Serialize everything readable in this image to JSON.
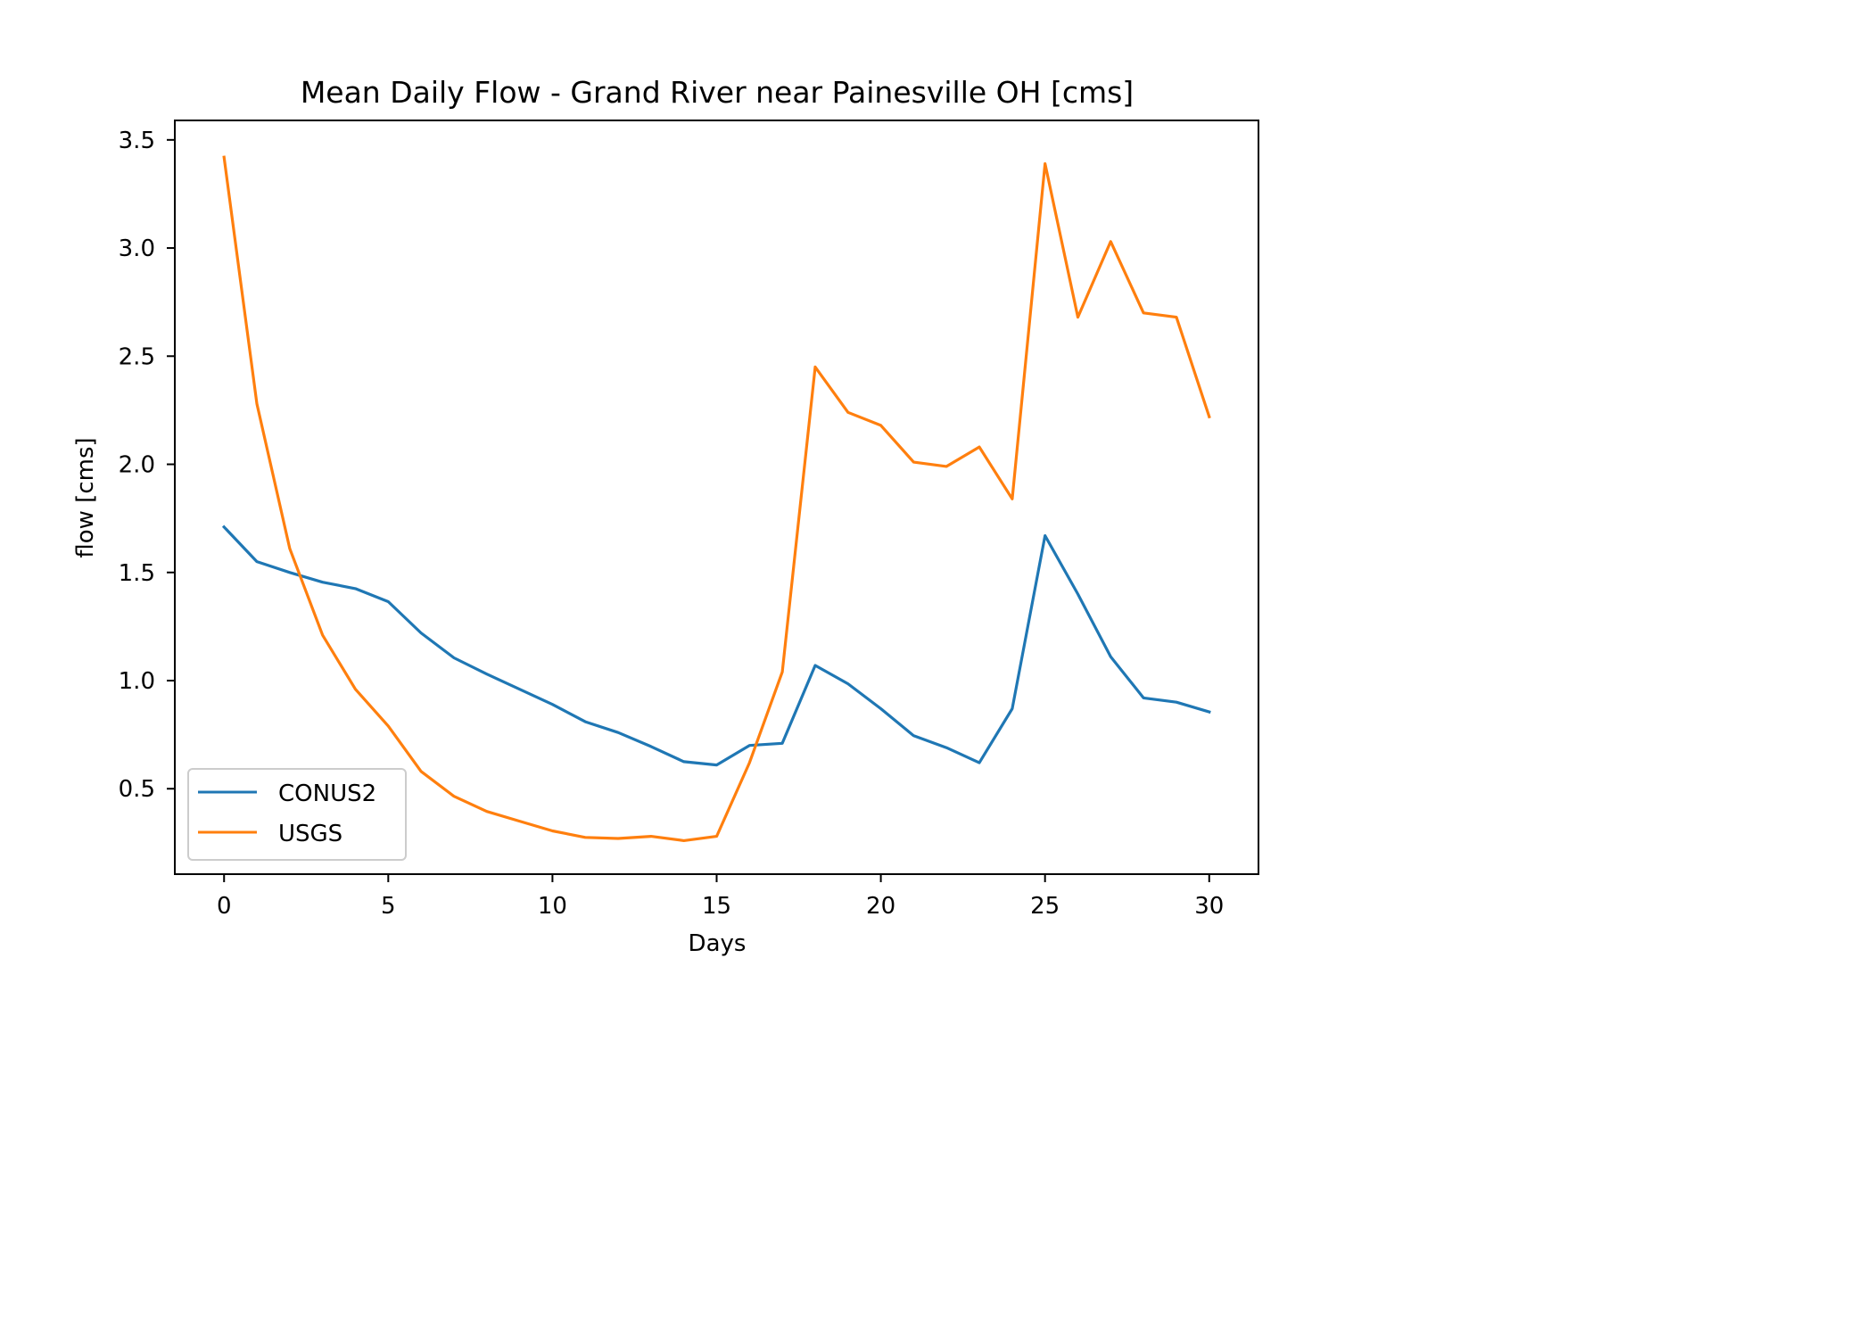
{
  "chart_data": {
    "type": "line",
    "title": "Mean Daily Flow - Grand River near Painesville OH [cms]",
    "xlabel": "Days",
    "ylabel": "flow [cms]",
    "x": [
      0,
      1,
      2,
      3,
      4,
      5,
      6,
      7,
      8,
      9,
      10,
      11,
      12,
      13,
      14,
      15,
      16,
      17,
      18,
      19,
      20,
      21,
      22,
      23,
      24,
      25,
      26,
      27,
      28,
      29,
      30
    ],
    "xlim": [
      -1.5,
      31.5
    ],
    "ylim": [
      0.105,
      3.59
    ],
    "xticks": [
      0,
      5,
      10,
      15,
      20,
      25,
      30
    ],
    "xtick_labels": [
      "0",
      "5",
      "10",
      "15",
      "20",
      "25",
      "30"
    ],
    "yticks": [
      0.5,
      1.0,
      1.5,
      2.0,
      2.5,
      3.0,
      3.5
    ],
    "ytick_labels": [
      "0.5",
      "1.0",
      "1.5",
      "2.0",
      "2.5",
      "3.0",
      "3.5"
    ],
    "grid": false,
    "legend_position": "lower-left",
    "series": [
      {
        "name": "CONUS2",
        "color": "#1f77b4",
        "values": [
          1.71,
          1.55,
          1.5,
          1.455,
          1.425,
          1.365,
          1.22,
          1.105,
          1.03,
          0.96,
          0.89,
          0.81,
          0.76,
          0.695,
          0.625,
          0.61,
          0.7,
          0.71,
          1.07,
          0.985,
          0.87,
          0.745,
          0.69,
          0.62,
          0.87,
          1.67,
          1.4,
          1.11,
          0.92,
          0.9,
          0.855
        ]
      },
      {
        "name": "USGS",
        "color": "#ff7f0e",
        "values": [
          3.42,
          2.28,
          1.61,
          1.21,
          0.96,
          0.79,
          0.58,
          0.465,
          0.395,
          0.35,
          0.305,
          0.275,
          0.27,
          0.28,
          0.26,
          0.28,
          0.62,
          1.04,
          2.45,
          2.24,
          2.18,
          2.01,
          1.99,
          2.08,
          1.84,
          3.39,
          2.68,
          3.03,
          2.7,
          2.68,
          2.22
        ]
      }
    ]
  }
}
